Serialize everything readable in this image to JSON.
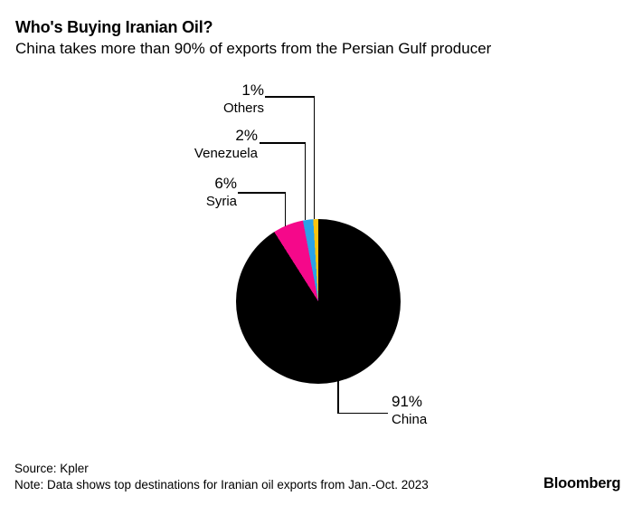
{
  "header": {
    "title": "Who's Buying Iranian Oil?",
    "subtitle": "China takes more than 90% of exports from the Persian Gulf producer"
  },
  "chart_data": {
    "type": "pie",
    "title": "Who's Buying Iranian Oil?",
    "subtitle": "China takes more than 90% of exports from the Persian Gulf producer",
    "unit": "percent of Iranian oil exports",
    "start_angle_deg": 0,
    "direction": "clockwise",
    "slices": [
      {
        "label": "China",
        "value": 91,
        "display": "91%",
        "color": "#000000"
      },
      {
        "label": "Syria",
        "value": 6,
        "display": "6%",
        "color": "#f5088a"
      },
      {
        "label": "Venezuela",
        "value": 2,
        "display": "2%",
        "color": "#2aa3e6"
      },
      {
        "label": "Others",
        "value": 1,
        "display": "1%",
        "color": "#fcc40e"
      }
    ]
  },
  "footer": {
    "source": "Source: Kpler",
    "note": "Note: Data shows top destinations for Iranian oil exports from Jan.-Oct. 2023",
    "brand": "Bloomberg"
  }
}
